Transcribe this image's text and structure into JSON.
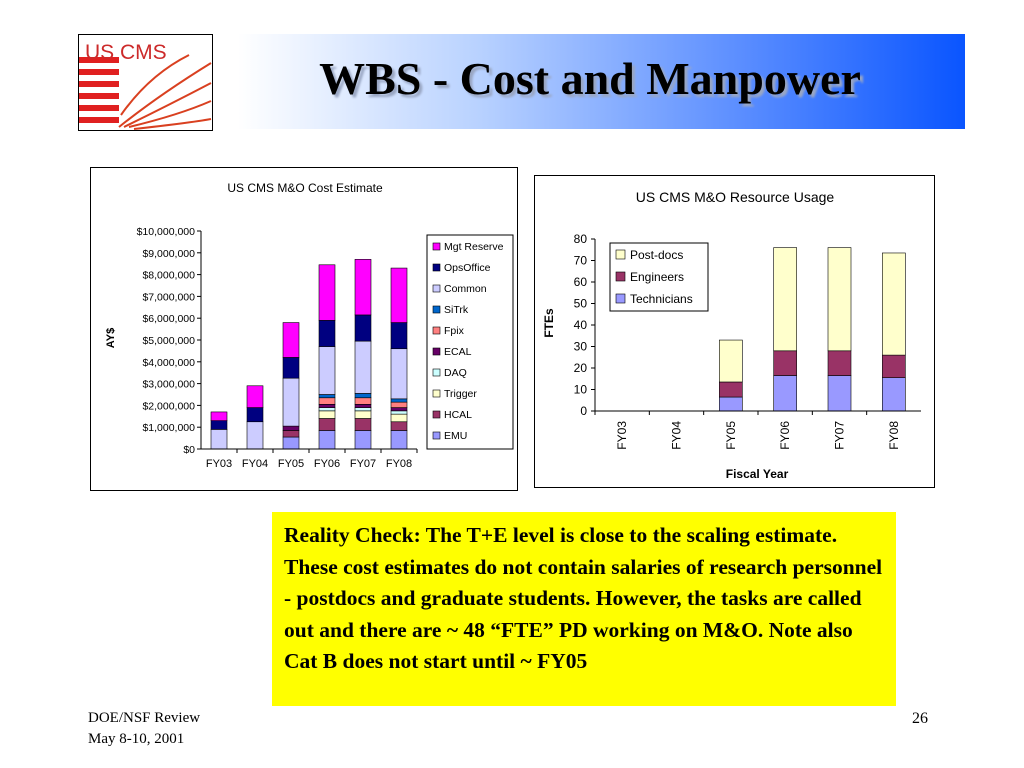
{
  "slide": {
    "title": "WBS - Cost and Manpower",
    "logo_text": "US CMS",
    "note": "Reality Check: The T+E level is close to the scaling estimate. These cost estimates do not contain salaries of research personnel - postdocs and graduate students. However, the tasks are called out and there are ~ 48 “FTE” PD working on M&O. Note also Cat B does not start until ~ FY05",
    "footer_line1": "DOE/NSF Review",
    "footer_line2": "May 8-10, 2001",
    "page_number": "26"
  },
  "chart_data": [
    {
      "type": "bar",
      "stacked": true,
      "title": "US CMS M&O Cost Estimate",
      "xlabel": "",
      "ylabel": "AY$",
      "categories": [
        "FY03",
        "FY04",
        "FY05",
        "FY06",
        "FY07",
        "FY08"
      ],
      "ylim": [
        0,
        10000000
      ],
      "ytick_labels": [
        "$0",
        "$1,000,000",
        "$2,000,000",
        "$3,000,000",
        "$4,000,000",
        "$5,000,000",
        "$6,000,000",
        "$7,000,000",
        "$8,000,000",
        "$9,000,000",
        "$10,000,000"
      ],
      "legend_position": "right",
      "series": [
        {
          "name": "EMU",
          "color": "#9999ff",
          "values": [
            0,
            0,
            550000,
            850000,
            850000,
            850000
          ]
        },
        {
          "name": "HCAL",
          "color": "#993366",
          "values": [
            0,
            0,
            300000,
            550000,
            550000,
            400000
          ]
        },
        {
          "name": "Trigger",
          "color": "#ffffcc",
          "values": [
            0,
            0,
            0,
            350000,
            350000,
            350000
          ]
        },
        {
          "name": "DAQ",
          "color": "#ccffff",
          "values": [
            0,
            0,
            0,
            150000,
            150000,
            150000
          ]
        },
        {
          "name": "ECAL",
          "color": "#660066",
          "values": [
            0,
            0,
            200000,
            150000,
            150000,
            150000
          ]
        },
        {
          "name": "Fpix",
          "color": "#ff8080",
          "values": [
            0,
            0,
            0,
            300000,
            300000,
            250000
          ]
        },
        {
          "name": "SiTrk",
          "color": "#0066cc",
          "values": [
            0,
            0,
            0,
            150000,
            200000,
            150000
          ]
        },
        {
          "name": "Common",
          "color": "#ccccff",
          "values": [
            900000,
            1250000,
            2200000,
            2200000,
            2400000,
            2300000
          ]
        },
        {
          "name": "OpsOffice",
          "color": "#000080",
          "values": [
            400000,
            650000,
            950000,
            1200000,
            1200000,
            1200000
          ]
        },
        {
          "name": "Mgt Reserve",
          "color": "#ff00ff",
          "values": [
            400000,
            1000000,
            1600000,
            2550000,
            2550000,
            2500000
          ]
        }
      ]
    },
    {
      "type": "bar",
      "stacked": true,
      "title": "US CMS M&O Resource Usage",
      "xlabel": "Fiscal Year",
      "ylabel": "FTEs",
      "categories": [
        "FY03",
        "FY04",
        "FY05",
        "FY06",
        "FY07",
        "FY08"
      ],
      "ylim": [
        0,
        80
      ],
      "yticks": [
        0,
        10,
        20,
        30,
        40,
        50,
        60,
        70,
        80
      ],
      "legend_position": "top-left",
      "series": [
        {
          "name": "Technicians",
          "color": "#9999ff",
          "values": [
            0,
            0,
            6.5,
            16.5,
            16.5,
            15.5
          ]
        },
        {
          "name": "Engineers",
          "color": "#993366",
          "values": [
            0,
            0,
            7,
            11.5,
            11.5,
            10.5
          ]
        },
        {
          "name": "Post-docs",
          "color": "#ffffcc",
          "values": [
            0,
            0,
            19.5,
            48,
            48,
            47.5
          ]
        }
      ]
    }
  ]
}
